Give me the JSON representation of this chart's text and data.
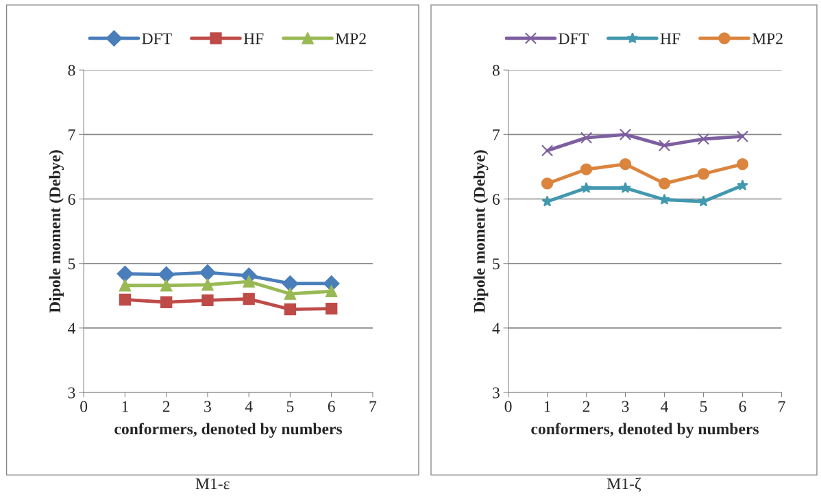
{
  "chart_data": [
    {
      "type": "line",
      "xlabel": "conformers, denoted by numbers",
      "ylabel": "Dipole moment (Debye)",
      "x": [
        1,
        2,
        3,
        4,
        5,
        6
      ],
      "xlim": [
        0,
        7
      ],
      "xticks": [
        0,
        1,
        2,
        3,
        4,
        5,
        6,
        7
      ],
      "ylim": [
        3,
        8
      ],
      "yticks": [
        3,
        4,
        5,
        6,
        7,
        8
      ],
      "grid": "y",
      "legend": "top",
      "annotations": [
        "M1-ε"
      ],
      "series": [
        {
          "name": "DFT",
          "color": "#4a7ebb",
          "marker": "diamond",
          "values": [
            4.84,
            4.83,
            4.86,
            4.81,
            4.69,
            4.69
          ]
        },
        {
          "name": "HF",
          "color": "#be4b48",
          "marker": "square",
          "values": [
            4.44,
            4.4,
            4.43,
            4.45,
            4.29,
            4.3
          ]
        },
        {
          "name": "MP2",
          "color": "#98b954",
          "marker": "triangle",
          "values": [
            4.66,
            4.66,
            4.67,
            4.72,
            4.53,
            4.57
          ]
        }
      ]
    },
    {
      "type": "line",
      "xlabel": "conformers, denoted by numbers",
      "ylabel": "Dipole moment (Debye)",
      "x": [
        1,
        2,
        3,
        4,
        5,
        6
      ],
      "xlim": [
        0,
        7
      ],
      "xticks": [
        0,
        1,
        2,
        3,
        4,
        5,
        6,
        7
      ],
      "ylim": [
        3,
        8
      ],
      "yticks": [
        3,
        4,
        5,
        6,
        7,
        8
      ],
      "grid": "y",
      "legend": "top",
      "annotations": [
        "M1-ζ"
      ],
      "series": [
        {
          "name": "DFT",
          "color": "#7d5fa0",
          "marker": "cross",
          "values": [
            6.75,
            6.95,
            7.0,
            6.83,
            6.93,
            6.97
          ]
        },
        {
          "name": "HF",
          "color": "#4198af",
          "marker": "star",
          "values": [
            5.96,
            6.17,
            6.17,
            5.99,
            5.96,
            6.21
          ]
        },
        {
          "name": "MP2",
          "color": "#db843d",
          "marker": "circle",
          "values": [
            6.24,
            6.46,
            6.54,
            6.24,
            6.39,
            6.54
          ]
        }
      ]
    }
  ]
}
